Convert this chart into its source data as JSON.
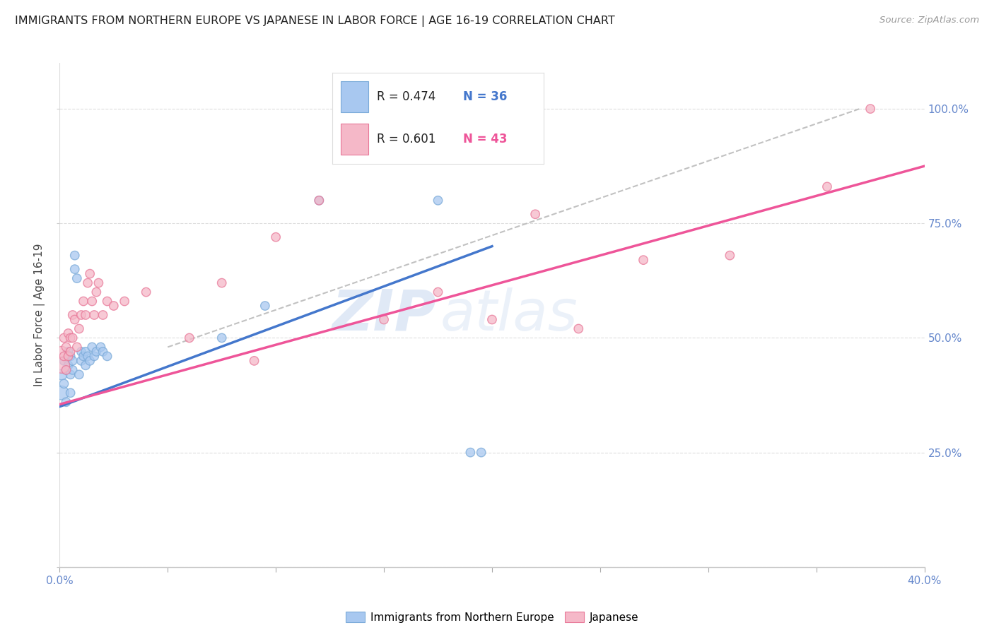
{
  "title": "IMMIGRANTS FROM NORTHERN EUROPE VS JAPANESE IN LABOR FORCE | AGE 16-19 CORRELATION CHART",
  "source": "Source: ZipAtlas.com",
  "ylabel": "In Labor Force | Age 16-19",
  "xlim": [
    0.0,
    0.4
  ],
  "ylim": [
    0.0,
    1.1
  ],
  "xticks": [
    0.0,
    0.05,
    0.1,
    0.15,
    0.2,
    0.25,
    0.3,
    0.35,
    0.4
  ],
  "xticklabels_left": "0.0%",
  "xticklabels_right": "40.0%",
  "yticks": [
    0.0,
    0.25,
    0.5,
    0.75,
    1.0
  ],
  "yticklabels": [
    "",
    "25.0%",
    "50.0%",
    "75.0%",
    "100.0%"
  ],
  "blue_color": "#A8C8F0",
  "pink_color": "#F5B8C8",
  "blue_edge_color": "#7AAAD8",
  "pink_edge_color": "#E87898",
  "blue_line_color": "#4477CC",
  "pink_line_color": "#EE5599",
  "ref_line_color": "#BBBBBB",
  "legend_blue_R": "0.474",
  "legend_blue_N": "36",
  "legend_pink_R": "0.601",
  "legend_pink_N": "43",
  "legend_label_blue": "Immigrants from Northern Europe",
  "legend_label_pink": "Japanese",
  "blue_line_x0": 0.0,
  "blue_line_y0": 0.35,
  "blue_line_x1": 0.2,
  "blue_line_y1": 0.7,
  "pink_line_x0": 0.0,
  "pink_line_y0": 0.355,
  "pink_line_x1": 0.4,
  "pink_line_y1": 0.875,
  "ref_line_x0": 0.05,
  "ref_line_y0": 0.48,
  "ref_line_x1": 0.37,
  "ref_line_y1": 1.0,
  "blue_x": [
    0.001,
    0.001,
    0.002,
    0.002,
    0.003,
    0.003,
    0.004,
    0.004,
    0.005,
    0.005,
    0.005,
    0.006,
    0.006,
    0.007,
    0.007,
    0.008,
    0.009,
    0.01,
    0.01,
    0.011,
    0.012,
    0.012,
    0.013,
    0.014,
    0.015,
    0.016,
    0.017,
    0.019,
    0.02,
    0.022,
    0.075,
    0.095,
    0.12,
    0.175,
    0.19,
    0.195
  ],
  "blue_y": [
    0.38,
    0.42,
    0.4,
    0.45,
    0.36,
    0.43,
    0.44,
    0.47,
    0.42,
    0.46,
    0.38,
    0.43,
    0.45,
    0.65,
    0.68,
    0.63,
    0.42,
    0.45,
    0.47,
    0.46,
    0.44,
    0.47,
    0.46,
    0.45,
    0.48,
    0.46,
    0.47,
    0.48,
    0.47,
    0.46,
    0.5,
    0.57,
    0.8,
    0.8,
    0.25,
    0.25
  ],
  "pink_x": [
    0.001,
    0.001,
    0.002,
    0.002,
    0.003,
    0.003,
    0.004,
    0.004,
    0.005,
    0.005,
    0.006,
    0.006,
    0.007,
    0.008,
    0.009,
    0.01,
    0.011,
    0.012,
    0.013,
    0.014,
    0.015,
    0.016,
    0.017,
    0.018,
    0.02,
    0.022,
    0.025,
    0.03,
    0.04,
    0.06,
    0.075,
    0.09,
    0.1,
    0.12,
    0.15,
    0.175,
    0.2,
    0.22,
    0.24,
    0.27,
    0.31,
    0.355,
    0.375
  ],
  "pink_y": [
    0.44,
    0.47,
    0.46,
    0.5,
    0.43,
    0.48,
    0.46,
    0.51,
    0.47,
    0.5,
    0.55,
    0.5,
    0.54,
    0.48,
    0.52,
    0.55,
    0.58,
    0.55,
    0.62,
    0.64,
    0.58,
    0.55,
    0.6,
    0.62,
    0.55,
    0.58,
    0.57,
    0.58,
    0.6,
    0.5,
    0.62,
    0.45,
    0.72,
    0.8,
    0.54,
    0.6,
    0.54,
    0.77,
    0.52,
    0.67,
    0.68,
    0.83,
    1.0
  ],
  "blue_sizes": [
    200,
    120,
    80,
    80,
    80,
    80,
    80,
    80,
    80,
    80,
    80,
    80,
    80,
    80,
    80,
    80,
    80,
    80,
    80,
    80,
    80,
    80,
    80,
    80,
    80,
    80,
    80,
    80,
    80,
    80,
    80,
    80,
    80,
    80,
    80,
    80
  ],
  "pink_sizes": [
    250,
    120,
    80,
    80,
    80,
    80,
    80,
    80,
    80,
    80,
    80,
    80,
    80,
    80,
    80,
    80,
    80,
    80,
    80,
    80,
    80,
    80,
    80,
    80,
    80,
    80,
    80,
    80,
    80,
    80,
    80,
    80,
    80,
    80,
    80,
    80,
    80,
    80,
    80,
    80,
    80,
    80,
    80
  ],
  "watermark_zip": "ZIP",
  "watermark_atlas": "atlas",
  "background_color": "#FFFFFF",
  "grid_color": "#DDDDDD",
  "tick_color": "#6688CC",
  "title_color": "#222222",
  "source_color": "#999999",
  "ylabel_color": "#444444"
}
